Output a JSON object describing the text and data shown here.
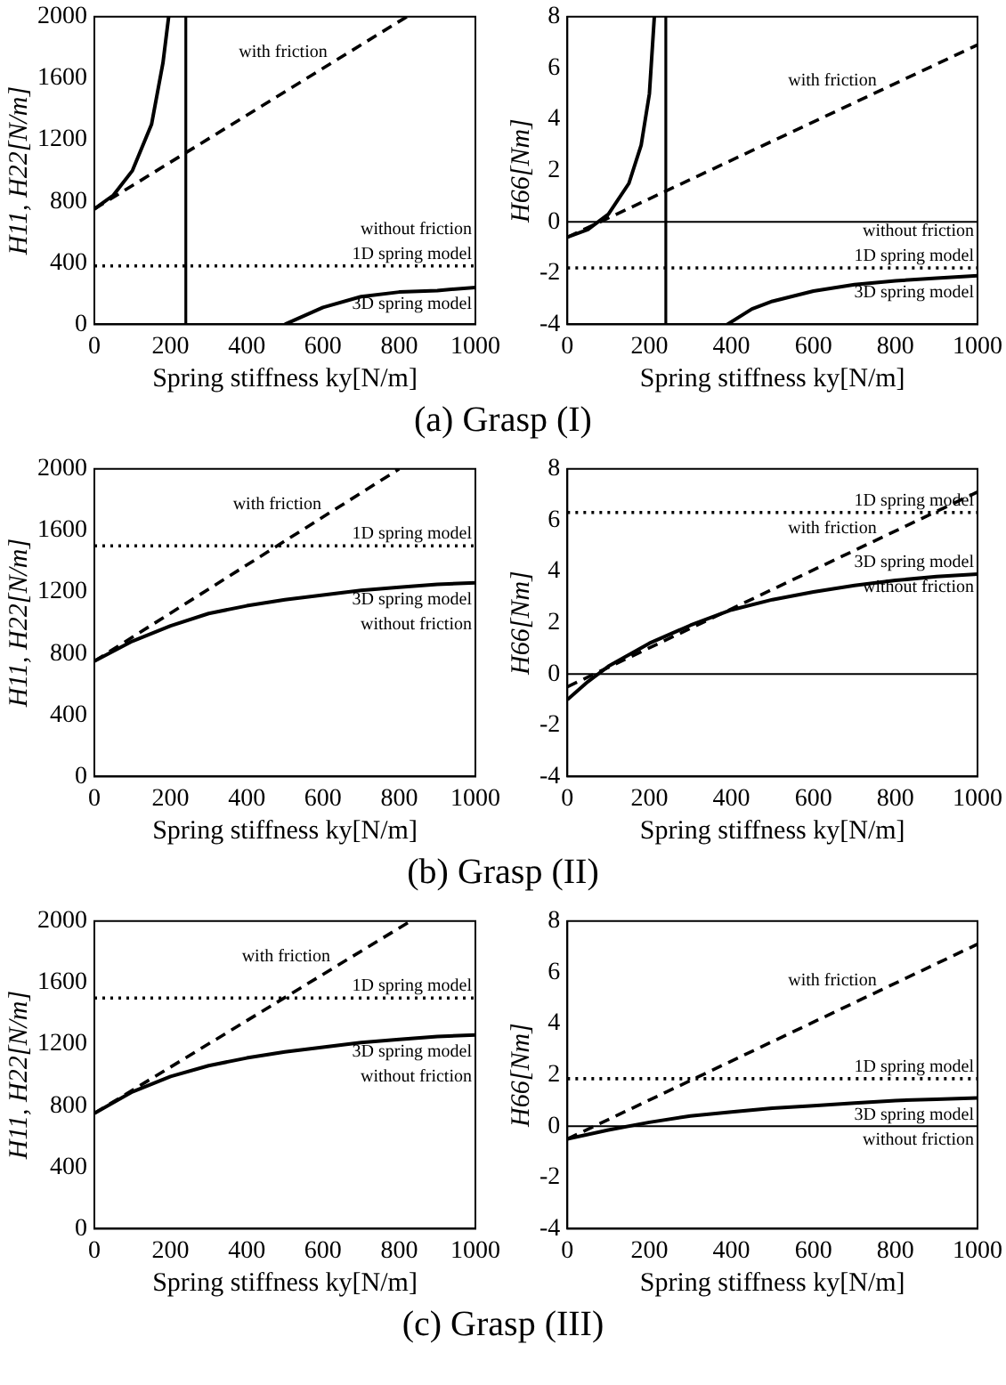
{
  "chart_data": [
    {
      "type": "line",
      "xlabel": "Spring stiffness ky[N/m]",
      "ylabel": "H11, H22[N/m]",
      "xlim": [
        0,
        1000
      ],
      "ylim": [
        0,
        2000
      ],
      "xticks": [
        0,
        200,
        400,
        600,
        800,
        1000
      ],
      "yticks": [
        0,
        400,
        800,
        1200,
        1600,
        2000
      ],
      "grid": false,
      "legend": false,
      "marker": "none",
      "series": [
        {
          "name": "with friction",
          "color": "#000000",
          "line_style": "dashed",
          "x": [
            0,
            820
          ],
          "values": [
            750,
            2000
          ]
        },
        {
          "name": "1D spring model",
          "color": "#000000",
          "line_style": "dotted",
          "x": [
            0,
            1000
          ],
          "values": [
            380,
            380
          ]
        },
        {
          "name": "3D spring model",
          "color": "#000000",
          "line_style": "solid",
          "x": [
            0,
            50,
            100,
            150,
            180,
            195,
            350,
            500,
            600,
            700,
            800,
            900,
            1000
          ],
          "values": [
            750,
            840,
            1000,
            1300,
            1700,
            2000,
            null,
            0,
            110,
            180,
            210,
            220,
            240
          ]
        }
      ],
      "ref_lines": [
        {
          "axis": "x",
          "value": 240,
          "color": "#000000"
        }
      ],
      "annotations": [
        "without friction",
        "(a) Grasp (I)"
      ]
    },
    {
      "type": "line",
      "xlabel": "Spring stiffness ky[N/m]",
      "ylabel": "H66[Nm]",
      "xlim": [
        0,
        1000
      ],
      "ylim": [
        -4,
        8
      ],
      "xticks": [
        0,
        200,
        400,
        600,
        800,
        1000
      ],
      "yticks": [
        -4,
        -2,
        0,
        2,
        4,
        6,
        8
      ],
      "grid": false,
      "legend": false,
      "marker": "none",
      "series": [
        {
          "name": "with friction",
          "color": "#000000",
          "line_style": "dashed",
          "x": [
            0,
            1000
          ],
          "values": [
            -0.6,
            6.9
          ]
        },
        {
          "name": "1D spring model",
          "color": "#000000",
          "line_style": "dotted",
          "x": [
            0,
            1000
          ],
          "values": [
            -1.8,
            -1.8
          ]
        },
        {
          "name": "3D spring model",
          "color": "#000000",
          "line_style": "solid",
          "x": [
            0,
            50,
            100,
            150,
            180,
            200,
            212,
            300,
            390,
            450,
            500,
            600,
            700,
            800,
            900,
            1000
          ],
          "values": [
            -0.6,
            -0.3,
            0.3,
            1.5,
            3,
            5,
            8,
            null,
            -4,
            -3.4,
            -3.1,
            -2.7,
            -2.45,
            -2.3,
            -2.2,
            -2.1
          ]
        }
      ],
      "ref_lines": [
        {
          "axis": "x",
          "value": 240,
          "color": "#000000"
        },
        {
          "axis": "y",
          "value": 0,
          "color": "#000000"
        }
      ],
      "annotations": [
        "without friction"
      ]
    },
    {
      "type": "line",
      "xlabel": "Spring stiffness ky[N/m]",
      "ylabel": "H11, H22[N/m]",
      "xlim": [
        0,
        1000
      ],
      "ylim": [
        0,
        2000
      ],
      "xticks": [
        0,
        200,
        400,
        600,
        800,
        1000
      ],
      "yticks": [
        0,
        400,
        800,
        1200,
        1600,
        2000
      ],
      "grid": false,
      "legend": false,
      "marker": "none",
      "series": [
        {
          "name": "with friction",
          "color": "#000000",
          "line_style": "dashed",
          "x": [
            0,
            800
          ],
          "values": [
            750,
            2000
          ]
        },
        {
          "name": "1D spring model",
          "color": "#000000",
          "line_style": "dotted",
          "x": [
            0,
            1000
          ],
          "values": [
            1500,
            1500
          ]
        },
        {
          "name": "3D spring model",
          "color": "#000000",
          "line_style": "solid",
          "x": [
            0,
            100,
            200,
            300,
            400,
            500,
            600,
            700,
            800,
            900,
            1000
          ],
          "values": [
            750,
            880,
            980,
            1060,
            1110,
            1150,
            1180,
            1210,
            1230,
            1250,
            1260
          ]
        }
      ],
      "annotations": [
        "without friction",
        "(b) Grasp (II)"
      ]
    },
    {
      "type": "line",
      "xlabel": "Spring stiffness ky[N/m]",
      "ylabel": "H66[Nm]",
      "xlim": [
        0,
        1000
      ],
      "ylim": [
        -4,
        8
      ],
      "xticks": [
        0,
        200,
        400,
        600,
        800,
        1000
      ],
      "yticks": [
        -4,
        -2,
        0,
        2,
        4,
        6,
        8
      ],
      "grid": false,
      "legend": false,
      "marker": "none",
      "series": [
        {
          "name": "with friction",
          "color": "#000000",
          "line_style": "dashed",
          "x": [
            0,
            1000
          ],
          "values": [
            -0.5,
            7.1
          ]
        },
        {
          "name": "1D spring model",
          "color": "#000000",
          "line_style": "dotted",
          "x": [
            0,
            1000
          ],
          "values": [
            6.3,
            6.3
          ]
        },
        {
          "name": "3D spring model",
          "color": "#000000",
          "line_style": "solid",
          "x": [
            0,
            50,
            100,
            200,
            300,
            400,
            500,
            600,
            700,
            800,
            900,
            1000
          ],
          "values": [
            -1,
            -0.3,
            0.3,
            1.2,
            1.9,
            2.5,
            2.9,
            3.2,
            3.45,
            3.65,
            3.8,
            3.9
          ]
        }
      ],
      "ref_lines": [
        {
          "axis": "y",
          "value": 0,
          "color": "#000000"
        }
      ],
      "annotations": [
        "without friction"
      ]
    },
    {
      "type": "line",
      "xlabel": "Spring stiffness ky[N/m]",
      "ylabel": "H11, H22[N/m]",
      "xlim": [
        0,
        1000
      ],
      "ylim": [
        0,
        2000
      ],
      "xticks": [
        0,
        200,
        400,
        600,
        800,
        1000
      ],
      "yticks": [
        0,
        400,
        800,
        1200,
        1600,
        2000
      ],
      "grid": false,
      "legend": false,
      "marker": "none",
      "series": [
        {
          "name": "with friction",
          "color": "#000000",
          "line_style": "dashed",
          "x": [
            0,
            830
          ],
          "values": [
            750,
            2000
          ]
        },
        {
          "name": "1D spring model",
          "color": "#000000",
          "line_style": "dotted",
          "x": [
            0,
            1000
          ],
          "values": [
            1500,
            1500
          ]
        },
        {
          "name": "3D spring model",
          "color": "#000000",
          "line_style": "solid",
          "x": [
            0,
            100,
            200,
            300,
            400,
            500,
            600,
            700,
            800,
            900,
            1000
          ],
          "values": [
            750,
            890,
            990,
            1060,
            1110,
            1150,
            1180,
            1210,
            1230,
            1250,
            1260
          ]
        }
      ],
      "annotations": [
        "without friction",
        "(c) Grasp (III)"
      ]
    },
    {
      "type": "line",
      "xlabel": "Spring stiffness ky[N/m]",
      "ylabel": "H66[Nm]",
      "xlim": [
        0,
        1000
      ],
      "ylim": [
        -4,
        8
      ],
      "xticks": [
        0,
        200,
        400,
        600,
        800,
        1000
      ],
      "yticks": [
        -4,
        -2,
        0,
        2,
        4,
        6,
        8
      ],
      "grid": false,
      "legend": false,
      "marker": "none",
      "series": [
        {
          "name": "with friction",
          "color": "#000000",
          "line_style": "dashed",
          "x": [
            0,
            1000
          ],
          "values": [
            -0.5,
            7.1
          ]
        },
        {
          "name": "1D spring model",
          "color": "#000000",
          "line_style": "dotted",
          "x": [
            0,
            1000
          ],
          "values": [
            1.85,
            1.85
          ]
        },
        {
          "name": "3D spring model",
          "color": "#000000",
          "line_style": "solid",
          "x": [
            0,
            100,
            200,
            300,
            400,
            500,
            600,
            700,
            800,
            900,
            1000
          ],
          "values": [
            -0.5,
            -0.15,
            0.15,
            0.4,
            0.55,
            0.7,
            0.8,
            0.9,
            1.0,
            1.05,
            1.1
          ]
        }
      ],
      "ref_lines": [
        {
          "axis": "y",
          "value": 0,
          "color": "#000000"
        }
      ],
      "annotations": [
        "without friction"
      ]
    }
  ]
}
